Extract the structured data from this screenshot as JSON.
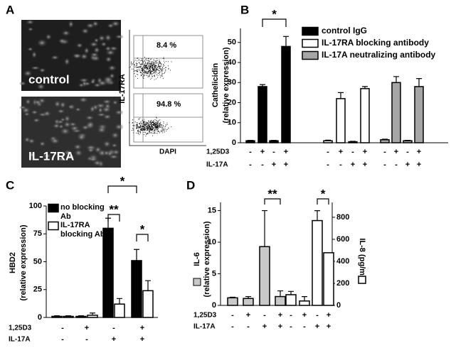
{
  "panel_a": {
    "label": "A",
    "images": [
      {
        "label": "control"
      },
      {
        "label": "IL-17RA"
      }
    ],
    "plots": [
      {
        "percent": "8.4 %"
      },
      {
        "percent": "94.8 %"
      }
    ],
    "y_label": "IL-17RA",
    "x_label": "DAPI"
  },
  "chart_data": [
    {
      "type": "bar",
      "label": "B",
      "y_label": [
        "Cathelicidin",
        "(relative expression)"
      ],
      "ylim": [
        0,
        57
      ],
      "yticks": [
        0,
        10,
        20,
        30,
        40,
        50
      ],
      "conditions": [
        {
          "name": "1,25D3",
          "signs": [
            "-",
            "+",
            "-",
            "+",
            "-",
            "+",
            "-",
            "+",
            "-",
            "+",
            "-",
            "+"
          ]
        },
        {
          "name": "IL-17A",
          "signs": [
            "-",
            "-",
            "+",
            "+",
            "-",
            "-",
            "+",
            "+",
            "-",
            "-",
            "+",
            "+"
          ]
        }
      ],
      "series": [
        {
          "name": "control IgG",
          "color": "#000000",
          "values": [
            1,
            28,
            1,
            48,
            null,
            null,
            null,
            null,
            null,
            null,
            null,
            null
          ],
          "errors": [
            0.2,
            1,
            0.2,
            5,
            null,
            null,
            null,
            null,
            null,
            null,
            null,
            null
          ]
        },
        {
          "name": "IL-17RA blocking antibody",
          "color": "#ffffff",
          "values": [
            null,
            null,
            null,
            null,
            1,
            22,
            0.5,
            27,
            null,
            null,
            null,
            null
          ],
          "errors": [
            null,
            null,
            null,
            null,
            0.3,
            3,
            0.2,
            1,
            null,
            null,
            null,
            null
          ]
        },
        {
          "name": "IL-17A neutralizing antibody",
          "color": "#a6a6a6",
          "values": [
            null,
            null,
            null,
            null,
            null,
            null,
            null,
            null,
            1.5,
            30,
            1,
            28
          ],
          "errors": [
            null,
            null,
            null,
            null,
            null,
            null,
            null,
            null,
            0.3,
            3,
            0.2,
            4
          ]
        }
      ],
      "annotations": [
        "*"
      ]
    },
    {
      "type": "bar",
      "label": "C",
      "y_label": [
        "HBD2",
        "(relative expression)"
      ],
      "ylim": [
        0,
        100
      ],
      "yticks": [
        0,
        25,
        50,
        75,
        100
      ],
      "conditions": [
        {
          "name": "1,25D3",
          "signs": [
            "-",
            "+",
            "-",
            "+"
          ]
        },
        {
          "name": "IL-17A",
          "signs": [
            "-",
            "-",
            "+",
            "+"
          ]
        }
      ],
      "series": [
        {
          "name": "no blocking Ab",
          "color": "#000000",
          "values": [
            1,
            1,
            80,
            51
          ],
          "errors": [
            0.5,
            0.5,
            9,
            10
          ]
        },
        {
          "name": "IL-17RA blocking Ab",
          "color": "#ffffff",
          "values": [
            1,
            2,
            12,
            24
          ],
          "errors": [
            0.5,
            2,
            5,
            9
          ]
        }
      ],
      "annotations": [
        "**",
        "*",
        "*"
      ]
    },
    {
      "type": "bar",
      "label": "D",
      "y_label": [
        "IL-6",
        "(relative expression)"
      ],
      "y2_label": "IL-8 (pg/ml)",
      "ylim": [
        0,
        16.3
      ],
      "yticks": [
        0,
        5,
        10,
        15
      ],
      "y2lim": [
        0,
        935
      ],
      "y2ticks": [
        0,
        200,
        400,
        600,
        800
      ],
      "conditions": [
        {
          "name": "1,25D3",
          "signs": [
            "-",
            "+",
            "-",
            "+",
            "-",
            "+",
            "-",
            "+"
          ]
        },
        {
          "name": "IL-17A",
          "signs": [
            "-",
            "-",
            "+",
            "+",
            "-",
            "-",
            "+",
            "+"
          ]
        }
      ],
      "series": [
        {
          "color": "#c8c8c8",
          "values": [
            1.2,
            1.1,
            9.3,
            1.4,
            null,
            null,
            null,
            null
          ],
          "errors": [
            0.1,
            0.3,
            5.7,
            0.9,
            null,
            null,
            null,
            null
          ]
        },
        {
          "color": "#ffffff",
          "axis": "y2",
          "values": [
            null,
            null,
            null,
            null,
            97,
            40,
            770,
            478
          ],
          "errors": [
            null,
            null,
            null,
            null,
            30,
            40,
            90,
            null
          ]
        }
      ],
      "annotations": [
        "**",
        "*"
      ]
    }
  ]
}
